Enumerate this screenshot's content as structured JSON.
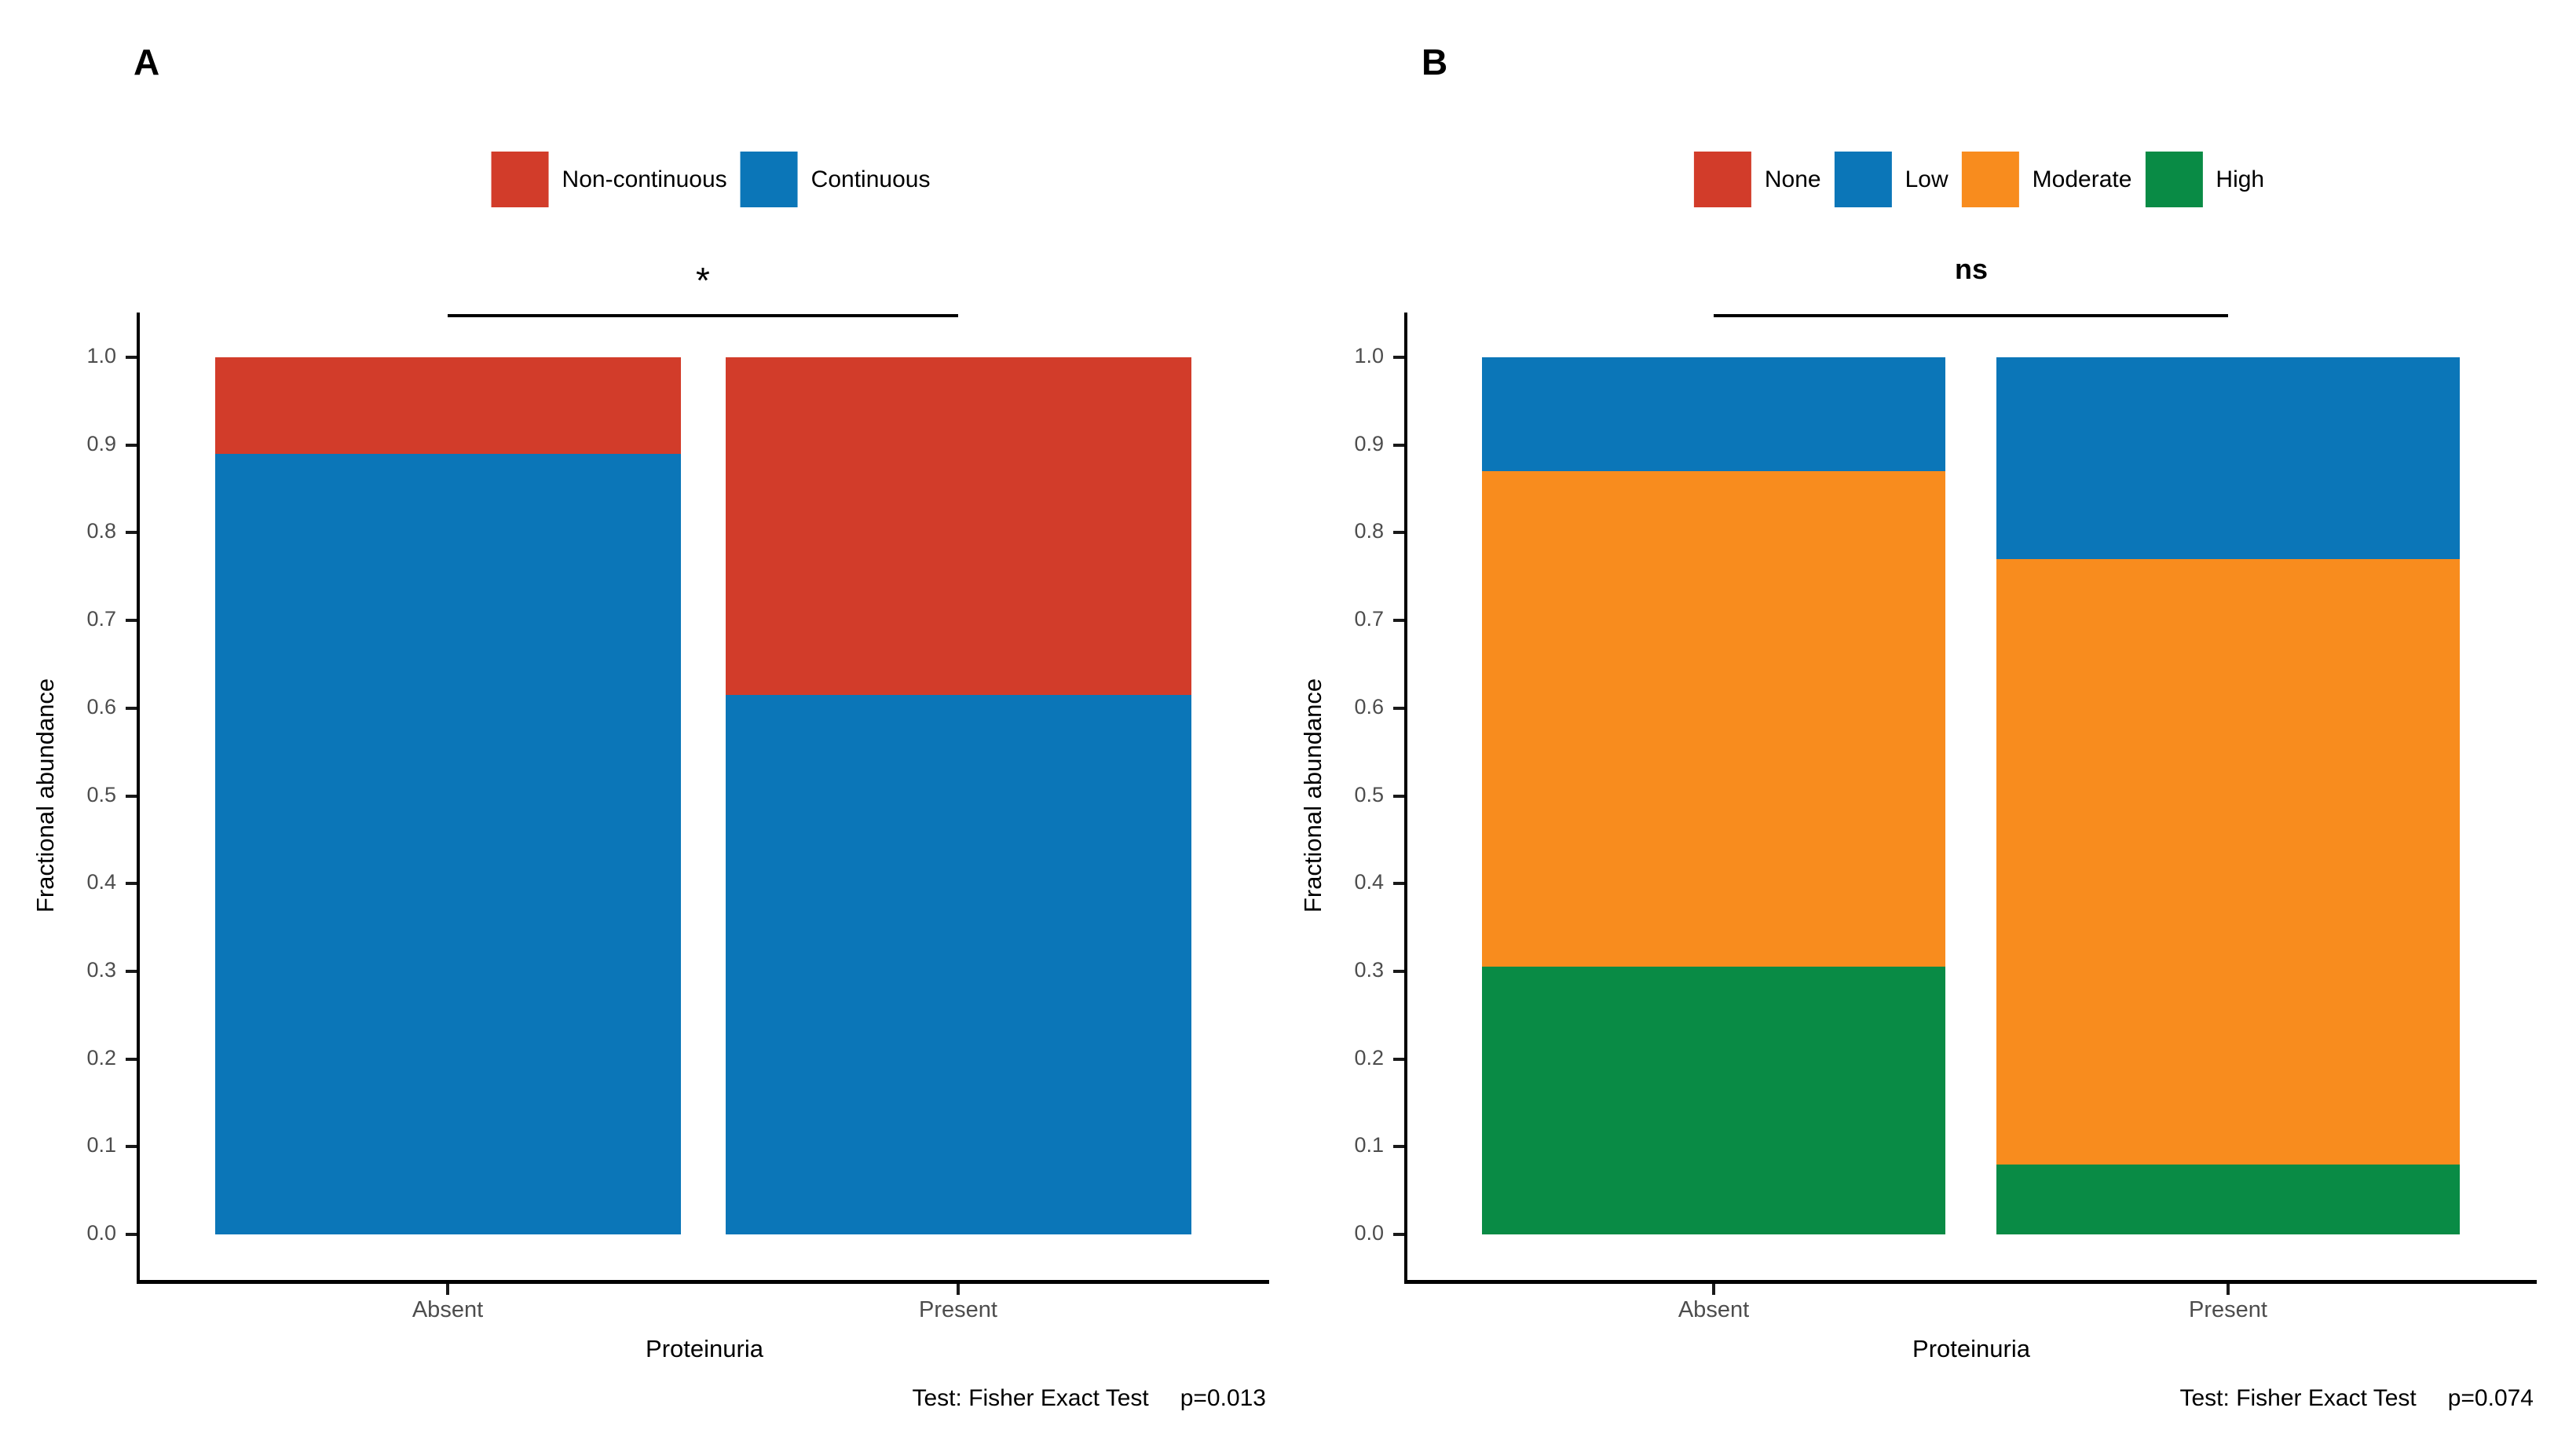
{
  "figure": {
    "background": "#ffffff",
    "axis_text_color": "#4d4d4d",
    "axis_line_color": "#000000"
  },
  "chart_data": [
    {
      "panel": "A",
      "type": "bar",
      "stacked": true,
      "orientation": "vertical",
      "categories": [
        "Absent",
        "Present"
      ],
      "series": [
        {
          "name": "Continuous",
          "color": "#0b76b8",
          "values": [
            0.89,
            0.615
          ]
        },
        {
          "name": "Non-continuous",
          "color": "#d23c2a",
          "values": [
            0.11,
            0.385
          ]
        }
      ],
      "series_order": "bottom-to-top",
      "legend": [
        {
          "label": "Non-continuous",
          "color": "#d23c2a"
        },
        {
          "label": "Continuous",
          "color": "#0b76b8"
        }
      ],
      "legend_position": "top",
      "xlabel": "Proteinuria",
      "ylabel": "Fractional abundance",
      "ylim": [
        0,
        1
      ],
      "ytick_step": 0.1,
      "ytick_labels": [
        "0.0",
        "0.1",
        "0.2",
        "0.3",
        "0.4",
        "0.5",
        "0.6",
        "0.7",
        "0.8",
        "0.9",
        "1.0"
      ],
      "grid": false,
      "significance_label": "*",
      "caption": {
        "test": "Test: Fisher Exact Test",
        "p": "p=0.013"
      }
    },
    {
      "panel": "B",
      "type": "bar",
      "stacked": true,
      "orientation": "vertical",
      "categories": [
        "Absent",
        "Present"
      ],
      "series": [
        {
          "name": "High",
          "color": "#098b45",
          "values": [
            0.305,
            0.08
          ]
        },
        {
          "name": "Moderate",
          "color": "#f88c1e",
          "values": [
            0.565,
            0.69
          ]
        },
        {
          "name": "Low",
          "color": "#0b76b8",
          "values": [
            0.13,
            0.23
          ]
        },
        {
          "name": "None",
          "color": "#d23c2a",
          "values": [
            0,
            0
          ]
        }
      ],
      "series_order": "bottom-to-top",
      "legend": [
        {
          "label": "None",
          "color": "#d23c2a"
        },
        {
          "label": "Low",
          "color": "#0b76b8"
        },
        {
          "label": "Moderate",
          "color": "#f88c1e"
        },
        {
          "label": "High",
          "color": "#098b45"
        }
      ],
      "legend_position": "top",
      "xlabel": "Proteinuria",
      "ylabel": "Fractional abundance",
      "ylim": [
        0,
        1
      ],
      "ytick_step": 0.1,
      "ytick_labels": [
        "0.0",
        "0.1",
        "0.2",
        "0.3",
        "0.4",
        "0.5",
        "0.6",
        "0.7",
        "0.8",
        "0.9",
        "1.0"
      ],
      "grid": false,
      "significance_label": "ns",
      "caption": {
        "test": "Test: Fisher Exact Test",
        "p": "p=0.074"
      }
    }
  ]
}
